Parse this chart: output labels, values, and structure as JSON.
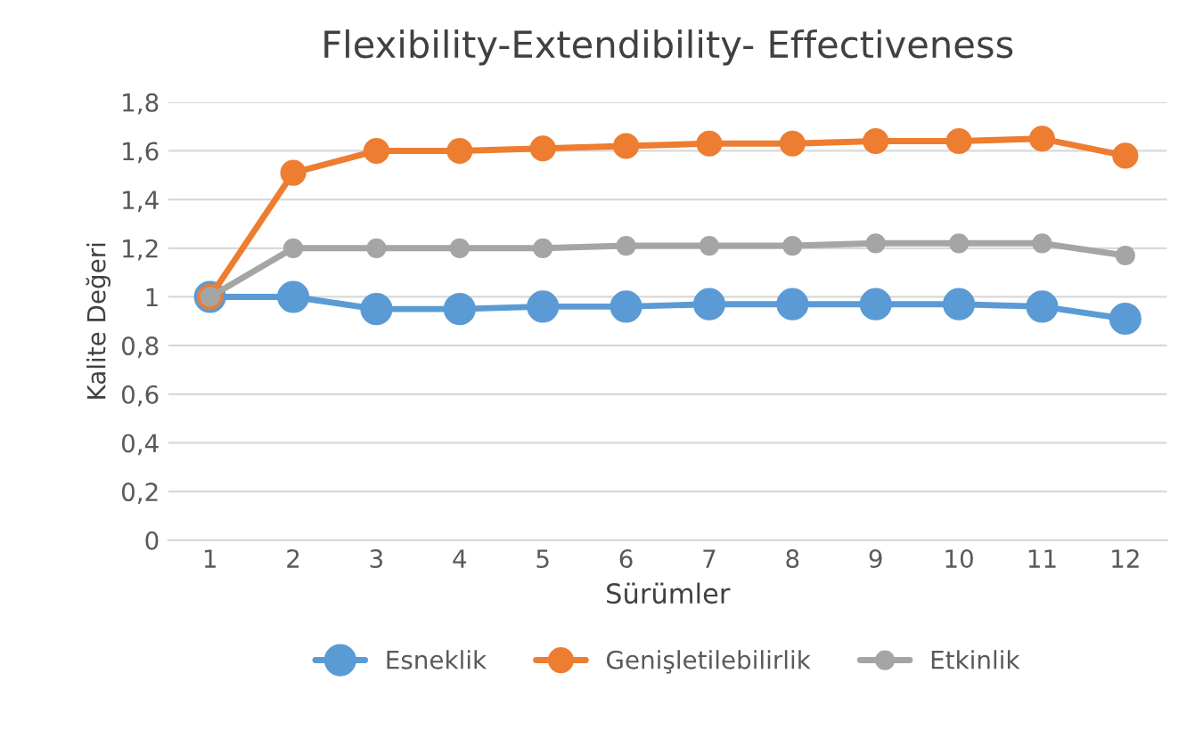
{
  "chart_data": {
    "type": "line",
    "title": "Flexibility-Extendibility- Effectiveness",
    "xlabel": "Sürümler",
    "ylabel": "Kalite Değeri",
    "categories": [
      "1",
      "2",
      "3",
      "4",
      "5",
      "6",
      "7",
      "8",
      "9",
      "10",
      "11",
      "12"
    ],
    "series": [
      {
        "name": "Esneklik",
        "color": "#5b9bd5",
        "values": [
          1,
          1,
          0.95,
          0.95,
          0.96,
          0.96,
          0.97,
          0.97,
          0.97,
          0.97,
          0.96,
          0.91
        ]
      },
      {
        "name": "Genişletilebilirlik",
        "color": "#ed7d31",
        "values": [
          1,
          1.51,
          1.6,
          1.6,
          1.61,
          1.62,
          1.63,
          1.63,
          1.64,
          1.64,
          1.65,
          1.58
        ]
      },
      {
        "name": "Etkinlik",
        "color": "#a5a5a5",
        "values": [
          1,
          1.2,
          1.2,
          1.2,
          1.2,
          1.21,
          1.21,
          1.21,
          1.22,
          1.22,
          1.22,
          1.17
        ]
      }
    ],
    "ylim": [
      0,
      1.8
    ],
    "yticks": [
      0,
      {
        "value": 0.2,
        "label": "0,2"
      },
      {
        "value": 0.4,
        "label": "0,4"
      },
      {
        "value": 0.6,
        "label": "0,6"
      },
      {
        "value": 0.8,
        "label": "0,8"
      },
      1,
      {
        "value": 1.2,
        "label": "1,2"
      },
      {
        "value": 1.4,
        "label": "1,4"
      },
      {
        "value": 1.6,
        "label": "1,6"
      },
      {
        "value": 1.8,
        "label": "1,8"
      }
    ],
    "grid": "y",
    "legend": "bottom",
    "marker": "circle",
    "line_style": "solid"
  }
}
